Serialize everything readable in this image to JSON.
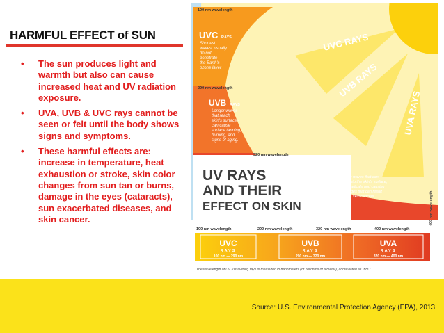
{
  "slide": {
    "title": "HARMFUL EFFECT of SUN",
    "bullets": [
      "The sun produces light and warmth but also can cause increased heat and UV radiation exposure.",
      "UVA, UVB & UVC rays cannot be seen or felt until the body shows signs and symptoms.",
      "These harmful effects are: increase in temperature, heat exhaustion or stroke, skin color changes from sun tan or burns, damage in the eyes (cataracts), sun exacerbated diseases, and skin cancer."
    ],
    "bullet_symbol": "•",
    "source": "Source: U.S. Environmental Protection Agency (EPA), 2013"
  },
  "infographic": {
    "wavelengths": {
      "w100": "100 nm wavelength",
      "w290": "290 nm wavelength",
      "w320": "320 nm wavelength",
      "w400": "400 nm wavelength"
    },
    "bands": {
      "uvc": {
        "label": "UVC",
        "suffix": "RAYS",
        "desc": [
          "Shortest",
          "waves, usually",
          "do not",
          "penetrate",
          "the Earth's",
          "ozone layer"
        ]
      },
      "uvb": {
        "label": "UVB",
        "suffix": "RAYS",
        "desc": [
          "Longer waves",
          "that reach",
          "skin's surface -",
          "can cause",
          "surface tanning,",
          "burning, and",
          "signs of aging."
        ]
      },
      "uva": {
        "label": "UVA",
        "suffix": "RAYS",
        "desc": [
          "Even longer waves that can",
          "penetrate deep into the skin's surface,",
          "releasing free radicals and causing",
          "DNA changes that can result",
          "in skin cancers."
        ]
      }
    },
    "beams": {
      "uvc": "UVC RAYS",
      "uvb": "UVB RAYS",
      "uva": "UVA RAYS"
    },
    "headline": [
      "UV RAYS",
      "AND THEIR",
      "EFFECT ON SKIN"
    ],
    "scale": {
      "ticks": [
        "100 nm wavelength",
        "290 nm wavelength",
        "320 nm wavelength",
        "400 nm wavelength"
      ],
      "boxes": [
        {
          "name": "UVC",
          "sub": "RAYS",
          "range": "100 nm — 290 nm"
        },
        {
          "name": "UVB",
          "sub": "RAYS",
          "range": "290 nm — 320 nm"
        },
        {
          "name": "UVA",
          "sub": "RAYS",
          "range": "320 nm — 400 nm"
        }
      ]
    },
    "footnote": "The wavelength of UV (ultraviolet) rays is measured in nanometers (or billionths of a meter), abbreviated as \"nm.\"",
    "colors": {
      "sun": "#fcd00c",
      "ray": "#fde76a",
      "uvc": "#f79a1e",
      "uvb": "#f2742a",
      "uva": "#e8472b",
      "sky": "#bfe0f2",
      "accent_red": "#e21d1d",
      "band_yellow": "#fbe21a"
    }
  }
}
